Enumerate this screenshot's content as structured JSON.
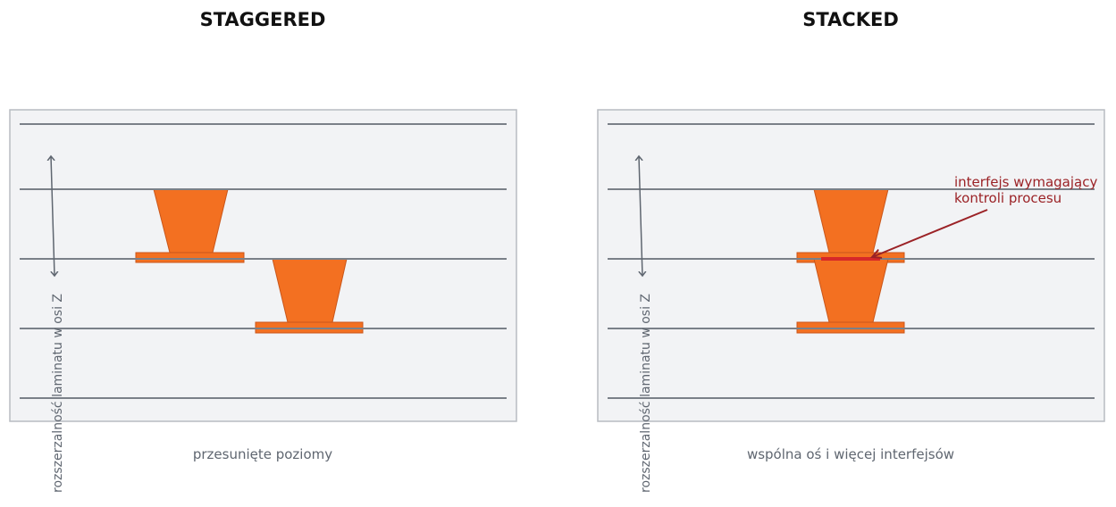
{
  "panels": [
    {
      "title": "STAGGERED",
      "axis_label": "rozszerzalność laminatu w osi Z",
      "caption": "przesunięte poziomy"
    },
    {
      "title": "STACKED",
      "axis_label": "rozszerzalność laminatu w osi Z",
      "caption": "wspólna oś i więcej interfejsów",
      "annotation": [
        "interfejs wymagający",
        "kontroli procesu"
      ]
    }
  ]
}
